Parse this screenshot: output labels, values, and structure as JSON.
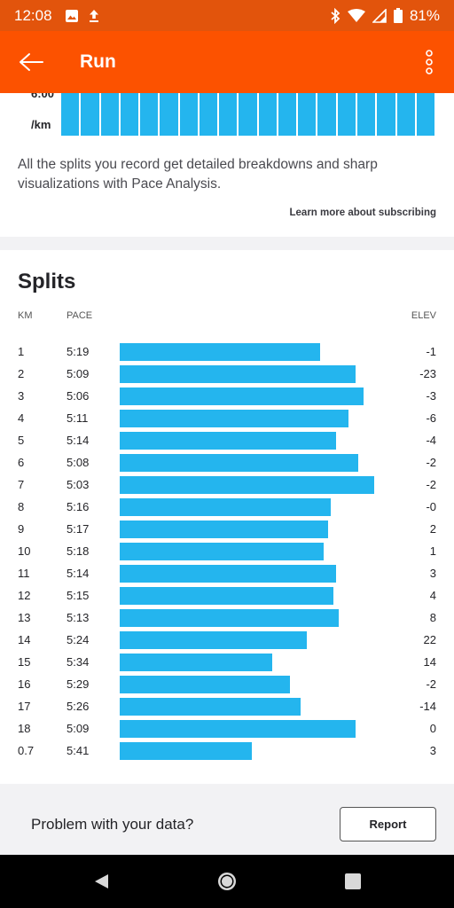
{
  "status_bar": {
    "time": "12:08",
    "battery": "81%"
  },
  "app_bar": {
    "title": "Run"
  },
  "pace_card": {
    "y_tick": "6:00",
    "y_unit": "/km",
    "description": "All the splits you record get detailed breakdowns and sharp visualizations with Pace Analysis.",
    "learn_more": "Learn more about subscribing"
  },
  "splits": {
    "title": "Splits",
    "headers": {
      "km": "KM",
      "pace": "PACE",
      "elev": "ELEV"
    },
    "rows": [
      {
        "km": "1",
        "pace": "5:19",
        "elev": "-1",
        "bar_fraction": 0.787
      },
      {
        "km": "2",
        "pace": "5:09",
        "elev": "-23",
        "bar_fraction": 0.927
      },
      {
        "km": "3",
        "pace": "5:06",
        "elev": "-3",
        "bar_fraction": 0.958
      },
      {
        "km": "4",
        "pace": "5:11",
        "elev": "-6",
        "bar_fraction": 0.899
      },
      {
        "km": "5",
        "pace": "5:14",
        "elev": "-4",
        "bar_fraction": 0.85
      },
      {
        "km": "6",
        "pace": "5:08",
        "elev": "-2",
        "bar_fraction": 0.937
      },
      {
        "km": "7",
        "pace": "5:03",
        "elev": "-2",
        "bar_fraction": 1.0
      },
      {
        "km": "8",
        "pace": "5:16",
        "elev": "-0",
        "bar_fraction": 0.828
      },
      {
        "km": "9",
        "pace": "5:17",
        "elev": "2",
        "bar_fraction": 0.819
      },
      {
        "km": "10",
        "pace": "5:18",
        "elev": "1",
        "bar_fraction": 0.801
      },
      {
        "km": "11",
        "pace": "5:14",
        "elev": "3",
        "bar_fraction": 0.85
      },
      {
        "km": "12",
        "pace": "5:15",
        "elev": "4",
        "bar_fraction": 0.84
      },
      {
        "km": "13",
        "pace": "5:13",
        "elev": "8",
        "bar_fraction": 0.86
      },
      {
        "km": "14",
        "pace": "5:24",
        "elev": "22",
        "bar_fraction": 0.735
      },
      {
        "km": "15",
        "pace": "5:34",
        "elev": "14",
        "bar_fraction": 0.599
      },
      {
        "km": "16",
        "pace": "5:29",
        "elev": "-2",
        "bar_fraction": 0.669
      },
      {
        "km": "17",
        "pace": "5:26",
        "elev": "-14",
        "bar_fraction": 0.711
      },
      {
        "km": "18",
        "pace": "5:09",
        "elev": "0",
        "bar_fraction": 0.927
      },
      {
        "km": "0.7",
        "pace": "5:41",
        "elev": "3",
        "bar_fraction": 0.519
      }
    ]
  },
  "problem": {
    "question": "Problem with your data?",
    "report_label": "Report"
  },
  "colors": {
    "brand": "#fc5200",
    "status": "#e2540c",
    "bar": "#24b5ee"
  },
  "icons": [
    "image-icon",
    "upload-icon",
    "bluetooth-icon",
    "wifi-icon",
    "signal-icon",
    "battery-icon",
    "back-arrow-icon",
    "more-vert-icon",
    "nav-back-icon",
    "nav-home-icon",
    "nav-recents-icon"
  ]
}
